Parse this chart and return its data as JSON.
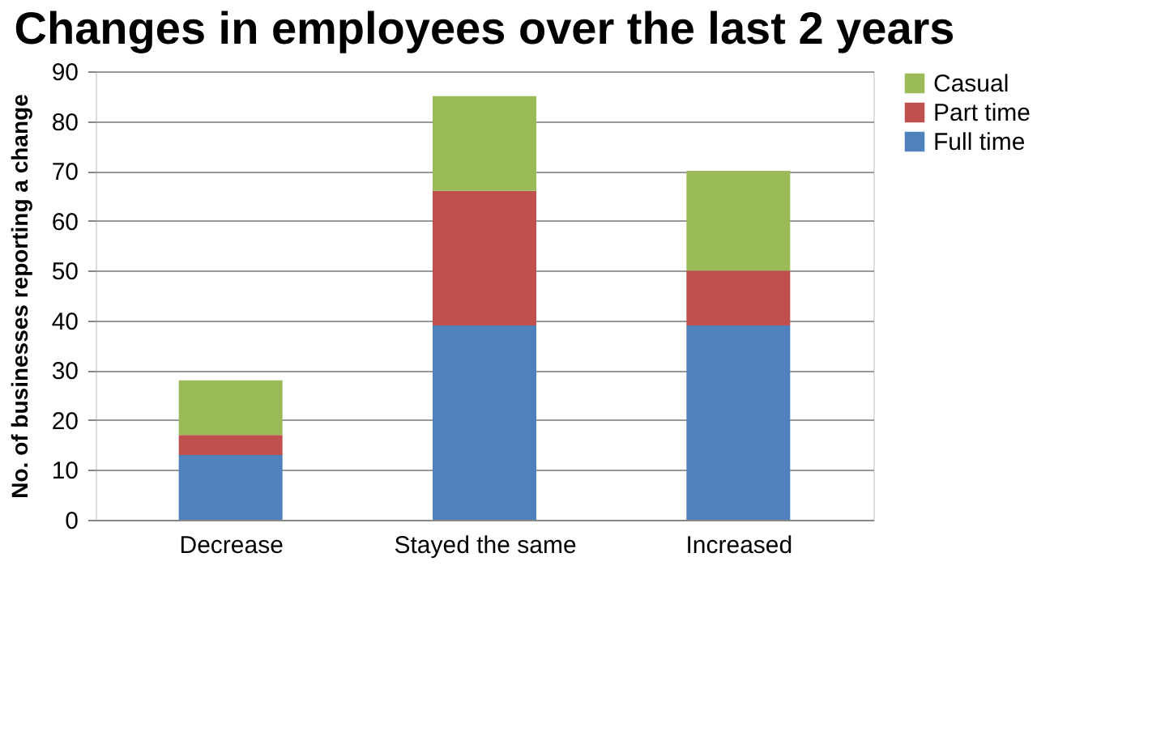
{
  "chart_data": {
    "type": "bar",
    "title": "Changes in employees over the last 2 years",
    "ylabel": "No. of businesses reporting a change",
    "categories": [
      "Decrease",
      "Stayed the same",
      "Increased"
    ],
    "stacked": true,
    "series": [
      {
        "name": "Full time",
        "color": "#4f81bd",
        "values": [
          13,
          39,
          39
        ]
      },
      {
        "name": "Part time",
        "color": "#c0504d",
        "values": [
          4,
          27,
          11
        ]
      },
      {
        "name": "Casual",
        "color": "#9bbb59",
        "values": [
          11,
          19,
          20
        ]
      }
    ],
    "ylim": [
      0,
      90
    ],
    "yticks": [
      0,
      10,
      20,
      30,
      40,
      50,
      60,
      70,
      80,
      90
    ],
    "grid": "y",
    "legend": "right"
  }
}
